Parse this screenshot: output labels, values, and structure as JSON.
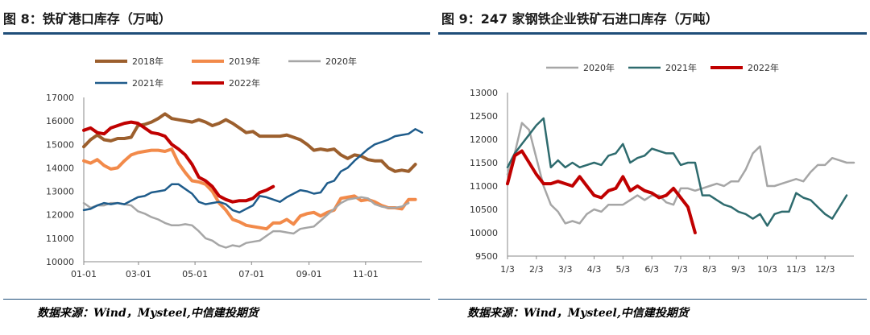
{
  "charts": [
    {
      "title": "图 8：铁矿港口库存（万吨）",
      "source": "数据来源：Wind，Mysteel,中信建投期货"
    },
    {
      "title": "图 9：247 家钢铁企业铁矿石进口库存（万吨）",
      "source": "数据来源：Wind，Mysteel,中信建投期货"
    }
  ],
  "chart_data": [
    {
      "type": "line",
      "title": "图 8：铁矿港口库存（万吨）",
      "xlabel": "",
      "ylabel": "",
      "ylim": [
        10000,
        17000
      ],
      "y_ticks": [
        10000,
        11000,
        12000,
        13000,
        14000,
        15000,
        16000,
        17000
      ],
      "xlim": [
        0,
        1
      ],
      "x_ticks": [
        {
          "label": "01-01",
          "x": 0.0
        },
        {
          "label": "03-01",
          "x": 0.1616
        },
        {
          "label": "05-01",
          "x": 0.3288
        },
        {
          "label": "07-01",
          "x": 0.4959
        },
        {
          "label": "09-01",
          "x": 0.6658
        },
        {
          "label": "11-01",
          "x": 0.8329
        }
      ],
      "grid": false,
      "legend": "top",
      "series": [
        {
          "name": "2018年",
          "color": "#9c5f2d",
          "width": 4,
          "x": [
            0,
            0.02,
            0.04,
            0.06,
            0.08,
            0.1,
            0.12,
            0.14,
            0.16,
            0.18,
            0.2,
            0.22,
            0.24,
            0.26,
            0.28,
            0.3,
            0.32,
            0.34,
            0.36,
            0.38,
            0.4,
            0.42,
            0.44,
            0.46,
            0.48,
            0.5,
            0.52,
            0.54,
            0.56,
            0.58,
            0.6,
            0.62,
            0.64,
            0.66,
            0.68,
            0.7,
            0.72,
            0.74,
            0.76,
            0.78,
            0.8,
            0.82,
            0.84,
            0.86,
            0.88,
            0.9,
            0.92,
            0.94,
            0.96,
            0.98,
            1.0
          ],
          "y": [
            14900,
            15200,
            15400,
            15200,
            15150,
            15250,
            15250,
            15300,
            15800,
            15850,
            15950,
            16100,
            16300,
            16100,
            16050,
            16000,
            15950,
            16050,
            15950,
            15800,
            15900,
            16050,
            15900,
            15700,
            15500,
            15550,
            15350,
            15350,
            15350,
            15350,
            15400,
            15300,
            15200,
            15000,
            14750,
            14800,
            14750,
            14800,
            14550,
            14400,
            14550,
            14500,
            14350,
            14300,
            14300,
            14000,
            13850,
            13900,
            13850,
            14150,
            null
          ]
        },
        {
          "name": "2019年",
          "color": "#f28a4a",
          "width": 4,
          "x": [
            0,
            0.02,
            0.04,
            0.06,
            0.08,
            0.1,
            0.12,
            0.14,
            0.16,
            0.18,
            0.2,
            0.22,
            0.24,
            0.26,
            0.28,
            0.3,
            0.32,
            0.34,
            0.36,
            0.38,
            0.4,
            0.42,
            0.44,
            0.46,
            0.48,
            0.5,
            0.52,
            0.54,
            0.56,
            0.58,
            0.6,
            0.62,
            0.64,
            0.66,
            0.68,
            0.7,
            0.72,
            0.74,
            0.76,
            0.78,
            0.8,
            0.82,
            0.84,
            0.86,
            0.88,
            0.9,
            0.92,
            0.94,
            0.96,
            0.98,
            1.0
          ],
          "y": [
            14300,
            14200,
            14350,
            14100,
            13950,
            14000,
            14300,
            14550,
            14650,
            14700,
            14750,
            14750,
            14700,
            14800,
            14200,
            13800,
            13450,
            13400,
            13300,
            13000,
            12500,
            12200,
            11800,
            11700,
            11550,
            11500,
            11450,
            11400,
            11650,
            11650,
            11800,
            11600,
            11950,
            12050,
            12100,
            11950,
            12100,
            12200,
            12700,
            12750,
            12800,
            12600,
            12650,
            12550,
            12400,
            12300,
            12300,
            12250,
            12650,
            12650,
            null
          ]
        },
        {
          "name": "2020年",
          "color": "#a6a6a6",
          "width": 2.5,
          "x": [
            0,
            0.02,
            0.04,
            0.06,
            0.08,
            0.1,
            0.12,
            0.14,
            0.16,
            0.18,
            0.2,
            0.22,
            0.24,
            0.26,
            0.28,
            0.3,
            0.32,
            0.34,
            0.36,
            0.38,
            0.4,
            0.42,
            0.44,
            0.46,
            0.48,
            0.5,
            0.52,
            0.54,
            0.56,
            0.58,
            0.6,
            0.62,
            0.64,
            0.66,
            0.68,
            0.7,
            0.72,
            0.74,
            0.76,
            0.78,
            0.8,
            0.82,
            0.84,
            0.86,
            0.88,
            0.9,
            0.92,
            0.94,
            0.96,
            0.98,
            1.0
          ],
          "y": [
            12500,
            12300,
            12400,
            12400,
            12500,
            12500,
            12450,
            12400,
            12150,
            12050,
            11900,
            11800,
            11650,
            11550,
            11550,
            11600,
            11550,
            11300,
            11000,
            10900,
            10700,
            10600,
            10700,
            10650,
            10800,
            10850,
            10900,
            11100,
            11300,
            11300,
            11250,
            11200,
            11400,
            11450,
            11500,
            11750,
            12000,
            12250,
            12500,
            12650,
            12700,
            12750,
            12700,
            12450,
            12350,
            12300,
            12300,
            12350,
            12500,
            null,
            null
          ]
        },
        {
          "name": "2021年",
          "color": "#1f5c8b",
          "width": 2.5,
          "x": [
            0,
            0.02,
            0.04,
            0.06,
            0.08,
            0.1,
            0.12,
            0.14,
            0.16,
            0.18,
            0.2,
            0.22,
            0.24,
            0.26,
            0.28,
            0.3,
            0.32,
            0.34,
            0.36,
            0.38,
            0.4,
            0.42,
            0.44,
            0.46,
            0.48,
            0.5,
            0.52,
            0.54,
            0.56,
            0.58,
            0.6,
            0.62,
            0.64,
            0.66,
            0.68,
            0.7,
            0.72,
            0.74,
            0.76,
            0.78,
            0.8,
            0.82,
            0.84,
            0.86,
            0.88,
            0.9,
            0.92,
            0.94,
            0.96,
            0.98,
            1.0
          ],
          "y": [
            12200,
            12250,
            12400,
            12500,
            12450,
            12500,
            12450,
            12600,
            12750,
            12800,
            12950,
            13000,
            13050,
            13300,
            13300,
            13100,
            12900,
            12550,
            12450,
            12500,
            12550,
            12450,
            12200,
            12100,
            12250,
            12400,
            12800,
            12750,
            12650,
            12550,
            12750,
            12900,
            13050,
            13000,
            12900,
            12950,
            13350,
            13450,
            13850,
            14000,
            14300,
            14550,
            14800,
            15000,
            15100,
            15200,
            15350,
            15400,
            15450,
            15650,
            15500
          ]
        },
        {
          "name": "2022年",
          "color": "#c00000",
          "width": 4,
          "x": [
            0,
            0.02,
            0.04,
            0.06,
            0.08,
            0.1,
            0.12,
            0.14,
            0.16,
            0.18,
            0.2,
            0.22,
            0.24,
            0.26,
            0.28,
            0.3,
            0.32,
            0.34,
            0.36,
            0.38,
            0.4,
            0.42,
            0.44,
            0.46,
            0.48,
            0.5,
            0.52,
            0.54,
            0.56
          ],
          "y": [
            15600,
            15700,
            15500,
            15450,
            15700,
            15800,
            15900,
            15950,
            15900,
            15700,
            15500,
            15450,
            15350,
            15000,
            14800,
            14550,
            14150,
            13600,
            13450,
            13200,
            12800,
            12650,
            12550,
            12600,
            12600,
            12700,
            12950,
            13050,
            13200
          ]
        }
      ]
    },
    {
      "type": "line",
      "title": "图 9：247 家钢铁企业铁矿石进口库存（万吨）",
      "xlabel": "",
      "ylabel": "",
      "ylim": [
        9500,
        13000
      ],
      "y_ticks": [
        9500,
        10000,
        10500,
        11000,
        11500,
        12000,
        12500,
        13000
      ],
      "xlim": [
        0,
        12
      ],
      "x_ticks": [
        {
          "label": "1/3",
          "x": 0
        },
        {
          "label": "2/3",
          "x": 1
        },
        {
          "label": "3/3",
          "x": 2
        },
        {
          "label": "4/3",
          "x": 3
        },
        {
          "label": "5/3",
          "x": 4
        },
        {
          "label": "6/3",
          "x": 5
        },
        {
          "label": "7/3",
          "x": 6
        },
        {
          "label": "8/3",
          "x": 7
        },
        {
          "label": "9/3",
          "x": 8
        },
        {
          "label": "10/3",
          "x": 9
        },
        {
          "label": "11/3",
          "x": 10
        },
        {
          "label": "12/3",
          "x": 11
        }
      ],
      "grid": false,
      "legend": "top",
      "series": [
        {
          "name": "2020年",
          "color": "#a6a6a6",
          "width": 2.5,
          "x": [
            0,
            0.25,
            0.5,
            0.75,
            1.0,
            1.25,
            1.5,
            1.75,
            2.0,
            2.25,
            2.5,
            2.75,
            3.0,
            3.25,
            3.5,
            3.75,
            4.0,
            4.25,
            4.5,
            4.75,
            5.0,
            5.25,
            5.5,
            5.75,
            6.0,
            6.25,
            6.5,
            6.75,
            7.0,
            7.25,
            7.5,
            7.75,
            8.0,
            8.25,
            8.5,
            8.75,
            9.0,
            9.25,
            9.5,
            9.75,
            10.0,
            10.25,
            10.5,
            10.75,
            11.0,
            11.25,
            11.5,
            11.75,
            12.0
          ],
          "y": [
            11250,
            11700,
            12350,
            12200,
            11600,
            11000,
            10600,
            10450,
            10200,
            10250,
            10200,
            10400,
            10500,
            10450,
            10600,
            10600,
            10600,
            10700,
            10800,
            10700,
            10800,
            10800,
            10650,
            10600,
            10950,
            10950,
            10900,
            10950,
            11000,
            11050,
            11000,
            11100,
            11100,
            11350,
            11700,
            11850,
            11000,
            11000,
            11050,
            11100,
            11150,
            11100,
            11300,
            11450,
            11450,
            11600,
            11550,
            11500,
            11500
          ]
        },
        {
          "name": "2021年",
          "color": "#2e6b6e",
          "width": 2.5,
          "x": [
            0,
            0.25,
            0.5,
            0.75,
            1.0,
            1.25,
            1.5,
            1.75,
            2.0,
            2.25,
            2.5,
            2.75,
            3.0,
            3.25,
            3.5,
            3.75,
            4.0,
            4.25,
            4.5,
            4.75,
            5.0,
            5.25,
            5.5,
            5.75,
            6.0,
            6.25,
            6.5,
            6.75,
            7.0,
            7.25,
            7.5,
            7.75,
            8.0,
            8.25,
            8.5,
            8.75,
            9.0,
            9.25,
            9.5,
            9.75,
            10.0,
            10.25,
            10.5,
            10.75,
            11.0,
            11.25,
            11.5,
            11.75,
            12.0
          ],
          "y": [
            11400,
            11700,
            11900,
            12100,
            12300,
            12450,
            11400,
            11550,
            11400,
            11500,
            11400,
            11450,
            11500,
            11450,
            11650,
            11700,
            11900,
            11500,
            11600,
            11650,
            11800,
            11750,
            11700,
            11700,
            11450,
            11500,
            11500,
            10800,
            10800,
            10700,
            10600,
            10550,
            10450,
            10400,
            10300,
            10400,
            10150,
            10400,
            10450,
            10450,
            10850,
            10750,
            10700,
            10550,
            10400,
            10300,
            10550,
            10800,
            null
          ]
        },
        {
          "name": "2022年",
          "color": "#c00000",
          "width": 4,
          "x": [
            0,
            0.25,
            0.5,
            0.75,
            1.0,
            1.25,
            1.5,
            1.75,
            2.0,
            2.25,
            2.5,
            2.75,
            3.0,
            3.25,
            3.5,
            3.75,
            4.0,
            4.25,
            4.5,
            4.75,
            5.0,
            5.25,
            5.5,
            5.75,
            6.0,
            6.25,
            6.5
          ],
          "y": [
            11050,
            11650,
            11750,
            11500,
            11250,
            11050,
            11050,
            11100,
            11050,
            11000,
            11200,
            11000,
            10800,
            10750,
            10900,
            10950,
            11200,
            10900,
            11000,
            10900,
            10850,
            10750,
            10800,
            10950,
            10750,
            10550,
            10000
          ]
        }
      ]
    }
  ]
}
